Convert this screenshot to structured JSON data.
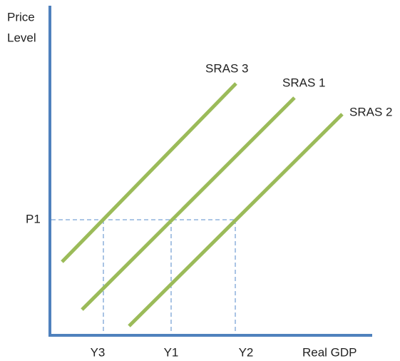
{
  "axes": {
    "y_label": [
      "Price",
      "Level"
    ],
    "x_label": "Real GDP"
  },
  "price_label": "P1",
  "output_labels": [
    "Y3",
    "Y1",
    "Y2"
  ],
  "curves": [
    "SRAS 3",
    "SRAS 1",
    "SRAS 2"
  ]
}
